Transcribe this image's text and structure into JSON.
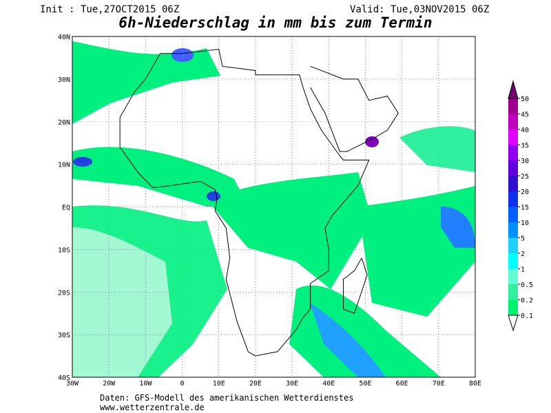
{
  "header": {
    "init": "Init : Tue,27OCT2015 06Z",
    "valid": "Valid: Tue,03NOV2015 06Z",
    "title": "6h-Niederschlag in mm bis zum Termin"
  },
  "map": {
    "lon_labels": [
      "30W",
      "20W",
      "10W",
      "0",
      "10E",
      "20E",
      "30E",
      "40E",
      "50E",
      "60E",
      "70E",
      "80E"
    ],
    "lat_labels": [
      "40N",
      "30N",
      "20N",
      "10N",
      "EQ",
      "10S",
      "20S",
      "30S",
      "40S"
    ]
  },
  "legend": {
    "levels": [
      0.1,
      0.2,
      0.5,
      1,
      2,
      5,
      10,
      15,
      20,
      25,
      30,
      35,
      40,
      45,
      50
    ],
    "colors": [
      "#00f070",
      "#30f0a0",
      "#60ffd0",
      "#00ffff",
      "#20d0ff",
      "#0090ff",
      "#0060ff",
      "#1030f0",
      "#3010d0",
      "#6000e0",
      "#9000f0",
      "#e000ff",
      "#c000c0",
      "#a00090",
      "#700070"
    ]
  },
  "footer": {
    "source": "Daten: GFS-Modell des amerikanischen Wetterdienstes",
    "url": "www.wetterzentrale.de"
  }
}
